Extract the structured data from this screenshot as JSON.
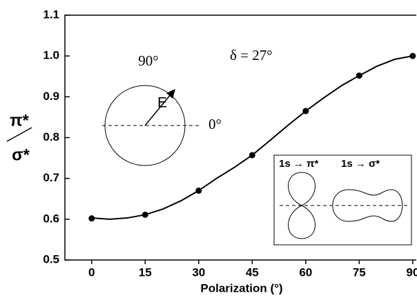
{
  "chart_data": {
    "type": "scatter",
    "xlabel": "Polarization (°)",
    "ylabel_numerator": "π*",
    "ylabel_denominator": "σ*",
    "x": [
      0,
      15,
      30,
      45,
      60,
      75,
      90
    ],
    "values": [
      0.602,
      0.611,
      0.67,
      0.757,
      0.865,
      0.952,
      1.0
    ],
    "color": "#000000",
    "fit": {
      "x": [
        0,
        5,
        10,
        15,
        20,
        25,
        30,
        35,
        40,
        45,
        50,
        55,
        60,
        65,
        70,
        75,
        80,
        85,
        90
      ],
      "values": [
        0.603,
        0.6,
        0.603,
        0.611,
        0.625,
        0.645,
        0.67,
        0.7,
        0.727,
        0.757,
        0.793,
        0.83,
        0.865,
        0.897,
        0.927,
        0.952,
        0.975,
        0.992,
        1.0
      ]
    },
    "xlim": [
      -7.5,
      91
    ],
    "ylim": [
      0.5,
      1.1
    ],
    "xticks": [
      0,
      15,
      30,
      45,
      60,
      75,
      90
    ],
    "yticks": [
      0.5,
      0.6,
      0.7,
      0.8,
      0.9,
      {
        "value": 1,
        "label": "1.0"
      },
      1.1
    ],
    "annotations": {
      "angle_90": "90°",
      "angle_0": "0°",
      "field": "E",
      "delta": "δ = 27°",
      "pi_transition": "1s → π*",
      "sigma_transition": "1s → σ*"
    }
  }
}
